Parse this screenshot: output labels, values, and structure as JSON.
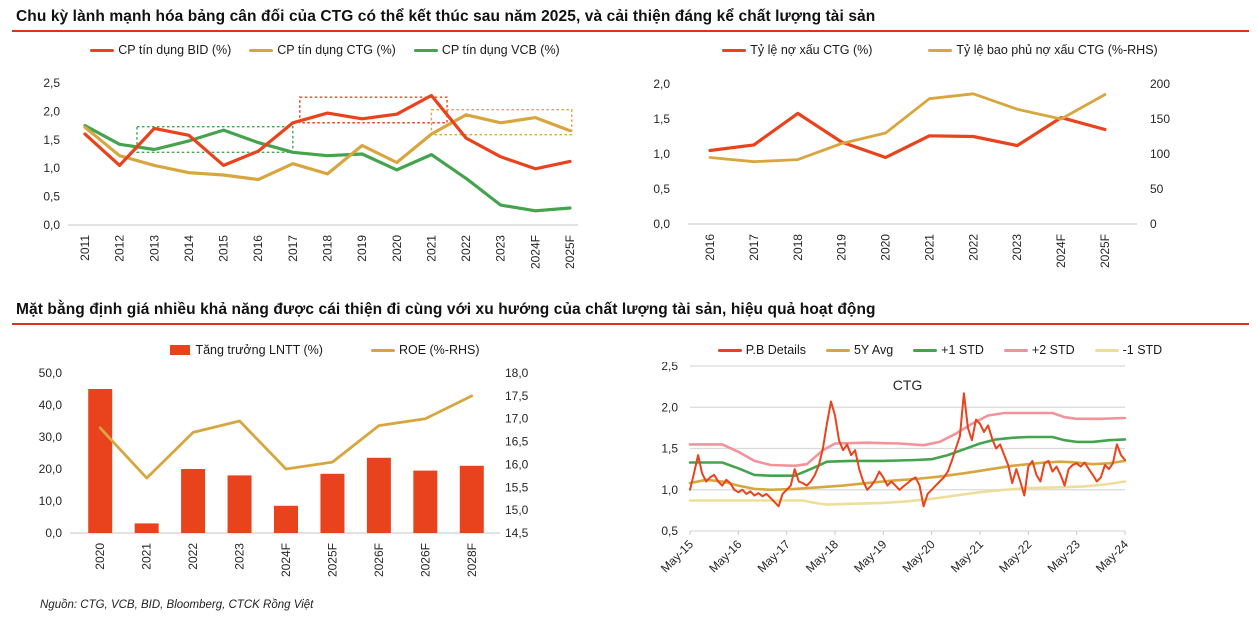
{
  "page": {
    "header1": "Chu kỳ lành mạnh hóa bảng cân đối của CTG có thể kết thúc sau năm 2025, và cải thiện đáng kể chất lượng tài sản",
    "header2": "Mặt bằng định giá nhiều khả năng được cái thiện đi cùng với xu hướng của chất lượng tài sản, hiệu quả hoạt động",
    "source_note": "Nguồn: CTG, VCB, BID, Bloomberg, CTCK Rồng Việt"
  },
  "colors": {
    "red": "#E8431C",
    "gold": "#D8A63F",
    "green": "#44A44E",
    "pink": "#F2939A",
    "cream": "#EDDF9A",
    "rule_red": "#E0301E",
    "baseline": "#D9D9D9",
    "grid": "#DADADA",
    "axis_text": "#262626"
  },
  "chart_data": [
    {
      "id": "credit_cost",
      "type": "line",
      "title": "",
      "legend": [
        {
          "label": "CP tín dụng BID (%)",
          "color": "red",
          "marker": "line"
        },
        {
          "label": "CP tín dụng CTG (%)",
          "color": "gold",
          "marker": "line"
        },
        {
          "label": "CP tín dụng VCB (%)",
          "color": "green",
          "marker": "line"
        }
      ],
      "categories": [
        "2011",
        "2012",
        "2013",
        "2014",
        "2015",
        "2016",
        "2017",
        "2018",
        "2019",
        "2020",
        "2021",
        "2022",
        "2023",
        "2024F",
        "2025F"
      ],
      "yticks": [
        {
          "v": 0,
          "label": "0,0"
        },
        {
          "v": 0.5,
          "label": "0,5"
        },
        {
          "v": 1.0,
          "label": "1,0"
        },
        {
          "v": 1.5,
          "label": "1,5"
        },
        {
          "v": 2.0,
          "label": "2,0"
        },
        {
          "v": 2.5,
          "label": "2,5"
        }
      ],
      "boxes": [
        {
          "color": "green",
          "x0": 1.5,
          "x1": 6.0,
          "y0": 1.28,
          "y1": 1.73
        },
        {
          "color": "red",
          "x0": 6.2,
          "x1": 10.45,
          "y0": 1.8,
          "y1": 2.25
        },
        {
          "color": "gold",
          "x0": 10.0,
          "x1": 14.05,
          "y0": 1.59,
          "y1": 2.03
        }
      ],
      "series": [
        {
          "name": "CP tín dụng VCB (%)",
          "color": "green",
          "values": [
            1.75,
            1.42,
            1.33,
            1.48,
            1.67,
            1.45,
            1.28,
            1.22,
            1.25,
            0.97,
            1.24,
            0.82,
            0.35,
            0.25,
            0.3
          ]
        },
        {
          "name": "CP tín dụng CTG (%)",
          "color": "gold",
          "values": [
            1.72,
            1.22,
            1.05,
            0.92,
            0.88,
            0.8,
            1.08,
            0.9,
            1.4,
            1.1,
            1.6,
            1.94,
            1.8,
            1.89,
            1.66
          ]
        },
        {
          "name": "CP tín dụng BID (%)",
          "color": "red",
          "values": [
            1.6,
            1.05,
            1.7,
            1.58,
            1.05,
            1.3,
            1.8,
            1.97,
            1.87,
            1.95,
            2.28,
            1.53,
            1.2,
            0.99,
            1.12
          ]
        }
      ],
      "ylim": [
        0,
        2.5
      ]
    },
    {
      "id": "npl",
      "type": "line",
      "title": "",
      "legend": [
        {
          "label": "Tỷ lệ nợ xấu CTG (%)",
          "color": "red",
          "marker": "line"
        },
        {
          "label": "Tỷ lệ bao phủ nợ xấu CTG (%-RHS)",
          "color": "gold",
          "marker": "line"
        }
      ],
      "categories": [
        "2016",
        "2017",
        "2018",
        "2019",
        "2020",
        "2021",
        "2022",
        "2023",
        "2024F",
        "2025F"
      ],
      "yticks": [
        {
          "v": 0,
          "label": "0,0"
        },
        {
          "v": 0.5,
          "label": "0,5"
        },
        {
          "v": 1.0,
          "label": "1,0"
        },
        {
          "v": 1.5,
          "label": "1,5"
        },
        {
          "v": 2.0,
          "label": "2,0"
        }
      ],
      "yticks_right": [
        {
          "v": 0,
          "label": "0"
        },
        {
          "v": 50,
          "label": "50"
        },
        {
          "v": 100,
          "label": "100"
        },
        {
          "v": 150,
          "label": "150"
        },
        {
          "v": 200,
          "label": "200"
        }
      ],
      "series": [
        {
          "name": "Tỷ lệ nợ xấu CTG (%)",
          "color": "red",
          "values": [
            1.05,
            1.13,
            1.58,
            1.17,
            0.95,
            1.26,
            1.25,
            1.12,
            1.52,
            1.35
          ]
        },
        {
          "name": "Tỷ lệ bao phủ nợ xấu CTG (%-RHS)",
          "color": "gold",
          "axis": "right",
          "values": [
            95,
            89,
            92,
            115,
            130,
            179,
            186,
            164,
            150,
            185
          ]
        }
      ],
      "ylim": [
        0,
        2.0
      ],
      "ylim_right": [
        0,
        200
      ]
    },
    {
      "id": "profit",
      "type": "bar-line",
      "title": "",
      "legend": [
        {
          "label": "Tăng trưởng LNTT (%)",
          "color": "red",
          "marker": "rect"
        },
        {
          "label": "ROE (%-RHS)",
          "color": "gold",
          "marker": "line"
        }
      ],
      "categories": [
        "2020",
        "2021",
        "2022",
        "2023",
        "2024F",
        "2025F",
        "2026F",
        "2026F",
        "2028F"
      ],
      "yticks": [
        {
          "v": 0,
          "label": "0,0"
        },
        {
          "v": 10,
          "label": "10,0"
        },
        {
          "v": 20,
          "label": "20,0"
        },
        {
          "v": 30,
          "label": "30,0"
        },
        {
          "v": 40,
          "label": "40,0"
        },
        {
          "v": 50,
          "label": "50,0"
        }
      ],
      "yticks_right": [
        {
          "v": 14.5,
          "label": "14,5"
        },
        {
          "v": 15.0,
          "label": "15,0"
        },
        {
          "v": 15.5,
          "label": "15,5"
        },
        {
          "v": 16.0,
          "label": "16,0"
        },
        {
          "v": 16.5,
          "label": "16,5"
        },
        {
          "v": 17.0,
          "label": "17,0"
        },
        {
          "v": 17.5,
          "label": "17,5"
        },
        {
          "v": 18.0,
          "label": "18,0"
        }
      ],
      "series": [
        {
          "name": "Tăng trưởng LNTT (%)",
          "color": "red",
          "kind": "bar",
          "values": [
            45,
            3,
            20,
            18,
            8.5,
            18.5,
            23.5,
            19.5,
            21
          ]
        },
        {
          "name": "ROE (%-RHS)",
          "color": "gold",
          "axis": "right",
          "values": [
            16.8,
            15.7,
            16.7,
            16.95,
            15.9,
            16.05,
            16.85,
            17.0,
            17.5
          ]
        }
      ],
      "ylim": [
        0,
        50
      ],
      "ylim_right": [
        14.5,
        18.0
      ]
    },
    {
      "id": "pb",
      "type": "line",
      "title": "CTG",
      "legend": [
        {
          "label": "P.B Details",
          "color": "red",
          "marker": "line"
        },
        {
          "label": "5Y Avg",
          "color": "gold",
          "marker": "line"
        },
        {
          "label": "+1 STD",
          "color": "green",
          "marker": "line"
        },
        {
          "label": "+2 STD",
          "color": "pink",
          "marker": "line"
        },
        {
          "label": "-1 STD",
          "color": "cream",
          "marker": "line"
        }
      ],
      "x_ticks": {
        "positions": [
          0,
          12,
          24,
          36,
          48,
          60,
          72,
          84,
          96,
          108
        ],
        "labels": [
          "May-15",
          "May-16",
          "May-17",
          "May-18",
          "May-19",
          "May-20",
          "May-21",
          "May-22",
          "May-23",
          "May-24"
        ]
      },
      "yticks": [
        {
          "v": 0.5,
          "label": "0,5"
        },
        {
          "v": 1.0,
          "label": "1,0"
        },
        {
          "v": 1.5,
          "label": "1,5"
        },
        {
          "v": 2.0,
          "label": "2,0"
        },
        {
          "v": 2.5,
          "label": "2,5"
        }
      ],
      "series": [
        {
          "name": "+2 STD",
          "color": "pink",
          "points": [
            [
              0,
              1.55
            ],
            [
              8,
              1.55
            ],
            [
              12,
              1.46
            ],
            [
              16,
              1.35
            ],
            [
              20,
              1.3
            ],
            [
              26,
              1.29
            ],
            [
              29,
              1.31
            ],
            [
              33,
              1.48
            ],
            [
              36,
              1.56
            ],
            [
              44,
              1.57
            ],
            [
              52,
              1.56
            ],
            [
              58,
              1.54
            ],
            [
              62,
              1.58
            ],
            [
              66,
              1.68
            ],
            [
              70,
              1.8
            ],
            [
              74,
              1.9
            ],
            [
              78,
              1.93
            ],
            [
              84,
              1.93
            ],
            [
              90,
              1.93
            ],
            [
              93,
              1.88
            ],
            [
              96,
              1.86
            ],
            [
              102,
              1.86
            ],
            [
              108,
              1.87
            ]
          ]
        },
        {
          "name": "+1 STD",
          "color": "green",
          "points": [
            [
              0,
              1.33
            ],
            [
              8,
              1.33
            ],
            [
              12,
              1.26
            ],
            [
              16,
              1.18
            ],
            [
              20,
              1.17
            ],
            [
              26,
              1.17
            ],
            [
              30,
              1.25
            ],
            [
              34,
              1.34
            ],
            [
              40,
              1.35
            ],
            [
              48,
              1.35
            ],
            [
              56,
              1.36
            ],
            [
              60,
              1.37
            ],
            [
              64,
              1.42
            ],
            [
              68,
              1.49
            ],
            [
              72,
              1.56
            ],
            [
              76,
              1.61
            ],
            [
              80,
              1.63
            ],
            [
              84,
              1.64
            ],
            [
              90,
              1.64
            ],
            [
              93,
              1.6
            ],
            [
              96,
              1.58
            ],
            [
              100,
              1.58
            ],
            [
              104,
              1.6
            ],
            [
              108,
              1.61
            ]
          ]
        },
        {
          "name": "-1 STD",
          "color": "cream",
          "points": [
            [
              0,
              0.87
            ],
            [
              10,
              0.87
            ],
            [
              20,
              0.87
            ],
            [
              28,
              0.87
            ],
            [
              31,
              0.84
            ],
            [
              34,
              0.82
            ],
            [
              40,
              0.83
            ],
            [
              48,
              0.84
            ],
            [
              54,
              0.86
            ],
            [
              60,
              0.89
            ],
            [
              66,
              0.93
            ],
            [
              72,
              0.97
            ],
            [
              78,
              1.0
            ],
            [
              84,
              1.02
            ],
            [
              92,
              1.03
            ],
            [
              98,
              1.04
            ],
            [
              104,
              1.07
            ],
            [
              108,
              1.1
            ]
          ]
        },
        {
          "name": "5Y Avg",
          "color": "gold",
          "points": [
            [
              0,
              1.08
            ],
            [
              4,
              1.12
            ],
            [
              8,
              1.1
            ],
            [
              12,
              1.05
            ],
            [
              16,
              1.01
            ],
            [
              20,
              1.0
            ],
            [
              26,
              1.01
            ],
            [
              32,
              1.03
            ],
            [
              38,
              1.05
            ],
            [
              44,
              1.08
            ],
            [
              50,
              1.11
            ],
            [
              56,
              1.13
            ],
            [
              62,
              1.16
            ],
            [
              68,
              1.2
            ],
            [
              72,
              1.23
            ],
            [
              76,
              1.26
            ],
            [
              80,
              1.29
            ],
            [
              84,
              1.31
            ],
            [
              88,
              1.33
            ],
            [
              92,
              1.34
            ],
            [
              96,
              1.33
            ],
            [
              100,
              1.31
            ],
            [
              104,
              1.32
            ],
            [
              108,
              1.35
            ]
          ]
        },
        {
          "name": "P.B Details",
          "color": "red",
          "values": [
            1.0,
            1.2,
            1.42,
            1.2,
            1.1,
            1.15,
            1.18,
            1.1,
            1.05,
            1.12,
            1.08,
            1.0,
            0.97,
            1.0,
            0.95,
            0.98,
            0.93,
            0.96,
            0.92,
            0.95,
            0.9,
            0.85,
            0.8,
            0.95,
            1.0,
            1.05,
            1.25,
            1.1,
            1.08,
            1.05,
            1.1,
            1.18,
            1.3,
            1.5,
            1.8,
            2.07,
            1.9,
            1.6,
            1.48,
            1.55,
            1.42,
            1.48,
            1.25,
            1.1,
            1.0,
            1.05,
            1.12,
            1.22,
            1.15,
            1.05,
            1.1,
            1.05,
            1.0,
            1.04,
            1.08,
            1.12,
            1.15,
            1.05,
            0.8,
            0.95,
            1.0,
            1.05,
            1.1,
            1.15,
            1.22,
            1.35,
            1.5,
            1.65,
            2.17,
            1.75,
            1.6,
            1.85,
            1.8,
            1.7,
            1.78,
            1.62,
            1.5,
            1.55,
            1.42,
            1.3,
            1.08,
            1.25,
            1.1,
            0.93,
            1.28,
            1.35,
            1.18,
            1.1,
            1.32,
            1.35,
            1.22,
            1.28,
            1.18,
            1.05,
            1.25,
            1.3,
            1.32,
            1.28,
            1.33,
            1.25,
            1.18,
            1.1,
            1.15,
            1.3,
            1.25,
            1.32,
            1.55,
            1.42,
            1.36
          ]
        }
      ],
      "ylim": [
        0.5,
        2.5
      ],
      "xlim": [
        0,
        108
      ],
      "grid": true
    }
  ]
}
